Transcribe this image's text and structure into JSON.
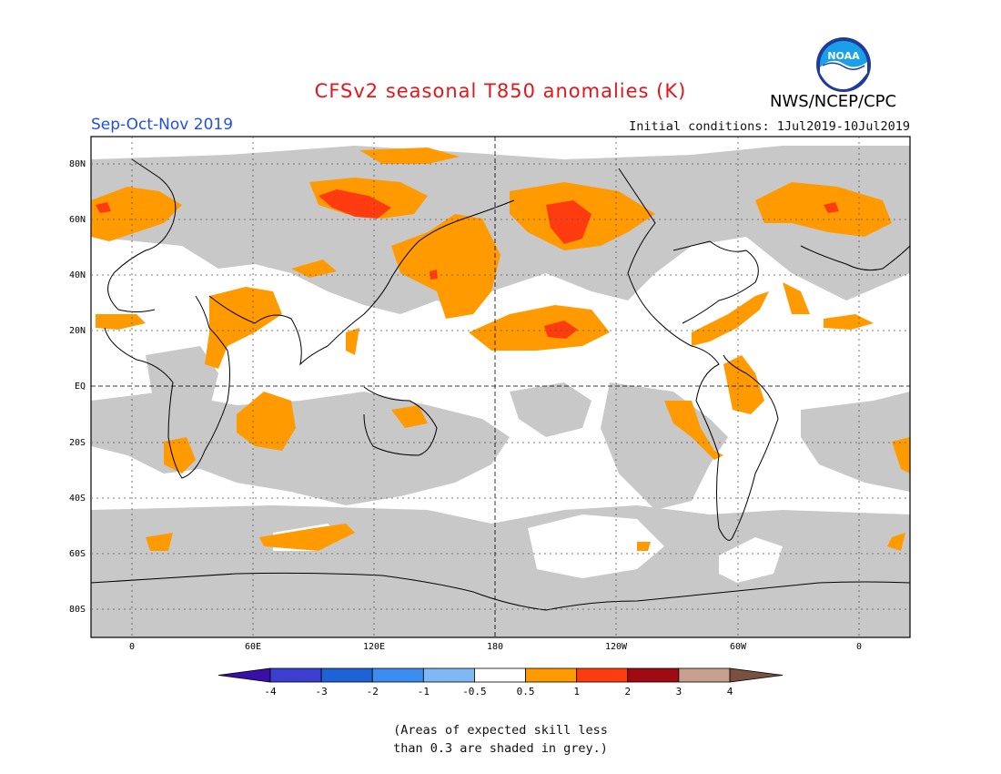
{
  "title": "CFSv2 seasonal T850 anomalies (K)",
  "season": "Sep-Oct-Nov 2019",
  "initial_conditions": "Initial conditions: 1Jul2019-10Jul2019",
  "agency": "NWS/NCEP/CPC",
  "logo_text": "NOAA",
  "lat_labels": [
    "80N",
    "60N",
    "40N",
    "20N",
    "EQ",
    "20S",
    "40S",
    "60S",
    "80S"
  ],
  "lon_labels": [
    "0",
    "60E",
    "120E",
    "180",
    "120W",
    "60W",
    "0"
  ],
  "colorbar": {
    "tick_labels": [
      "-4",
      "-3",
      "-2",
      "-1",
      "-0.5",
      "0.5",
      "1",
      "2",
      "3",
      "4"
    ],
    "colors": [
      "#3a0ea8",
      "#3c3ed0",
      "#1e63d6",
      "#3b8ef0",
      "#7fb8f4",
      "#ffffff",
      "#ff9a00",
      "#ff3c10",
      "#a00a12",
      "#c8a090",
      "#7a5040"
    ]
  },
  "skill_note": [
    "(Areas of expected skill less",
    "than 0.3 are shaded in grey.)"
  ],
  "colors": {
    "grey_skill": "#c8c8c8",
    "anom_05_1": "#ff9a00",
    "anom_1_2": "#ff3c10"
  }
}
